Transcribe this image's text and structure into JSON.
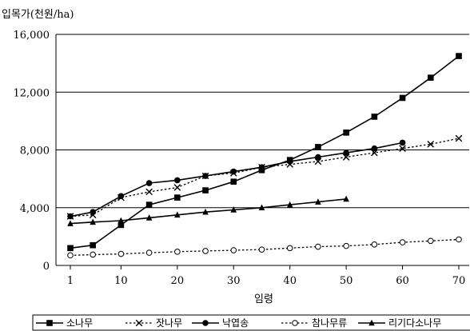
{
  "chart_data": {
    "type": "line",
    "ylabel": "입목가(천원/ha)",
    "xlabel": "임령",
    "x": [
      1,
      5,
      10,
      15,
      20,
      25,
      30,
      35,
      40,
      45,
      50,
      55,
      60,
      65,
      70
    ],
    "x_ticks": [
      1,
      10,
      20,
      30,
      40,
      50,
      60,
      70
    ],
    "x_range": [
      1,
      70
    ],
    "y_ticks": [
      "0",
      "4,000",
      "8,000",
      "12,000",
      "16,000"
    ],
    "ylim": [
      0,
      16000
    ],
    "grid": "horizontal",
    "legend_position": "bottom",
    "series": [
      {
        "name": "소나무",
        "color": "#000000",
        "dash": "solid",
        "marker": "square",
        "values": [
          1200,
          1400,
          2800,
          4200,
          4700,
          5200,
          5800,
          6600,
          7300,
          8200,
          9200,
          10300,
          11600,
          13000,
          14500
        ]
      },
      {
        "name": "잣나무",
        "color": "#000000",
        "dash": "dotted",
        "marker": "x",
        "values": [
          3400,
          3500,
          4700,
          5100,
          5400,
          6200,
          6400,
          6800,
          7000,
          7200,
          7500,
          7800,
          8100,
          8400,
          8800
        ]
      },
      {
        "name": "낙엽송",
        "color": "#000000",
        "dash": "solid",
        "marker": "circle",
        "values": [
          3400,
          3700,
          4800,
          5700,
          5900,
          6200,
          6500,
          6800,
          7200,
          7500,
          7800,
          8100,
          8500,
          null,
          null
        ]
      },
      {
        "name": "참나무류",
        "color": "#000000",
        "dash": "dotted",
        "marker": "open-circle",
        "values": [
          700,
          750,
          800,
          880,
          950,
          1000,
          1050,
          1100,
          1200,
          1300,
          1350,
          1450,
          1600,
          1700,
          1800
        ]
      },
      {
        "name": "리기다소나무",
        "color": "#000000",
        "dash": "solid",
        "marker": "triangle",
        "values": [
          2900,
          3000,
          3100,
          3300,
          3500,
          3700,
          3850,
          4000,
          4200,
          4400,
          4600,
          null,
          null,
          null,
          null
        ]
      }
    ]
  }
}
